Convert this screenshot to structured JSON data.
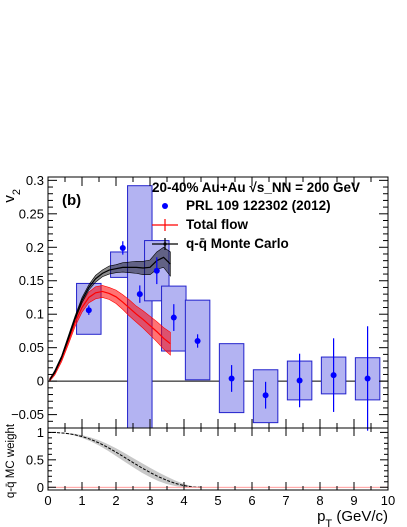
{
  "chart_data": [
    {
      "type": "scatter",
      "panel": "upper",
      "panel_label": "(b)",
      "title": "",
      "xlabel": "p_T (GeV/c)",
      "ylabel": "v_2",
      "xlim": [
        0,
        10
      ],
      "ylim": [
        -0.07,
        0.305
      ],
      "yticks": [
        -0.05,
        0,
        0.05,
        0.1,
        0.15,
        0.2,
        0.25,
        0.3
      ],
      "ytick_labels": [
        "−0.05",
        "0",
        "0.05",
        "0.1",
        "0.15",
        "0.2",
        "0.25",
        "0.3"
      ],
      "reference_line_y": 0,
      "legend_position": "top-right",
      "legend": {
        "header": "20-40% Au+Au  √s_NN = 200 GeV",
        "entries": [
          "PRL 109 122302 (2012)",
          "Total flow",
          "q-q̄ Monte Carlo"
        ]
      },
      "series": [
        {
          "name": "PRL 109 122302 (2012)",
          "color": "#0000ff",
          "marker": "circle",
          "x": [
            1.2,
            2.2,
            2.7,
            3.2,
            3.7,
            4.4,
            5.4,
            6.4,
            7.4,
            8.4,
            9.4
          ],
          "y": [
            0.106,
            0.199,
            0.13,
            0.165,
            0.095,
            0.06,
            0.004,
            -0.021,
            0.001,
            0.009,
            0.004
          ],
          "stat_err": [
            0.007,
            0.01,
            0.013,
            0.02,
            0.02,
            0.01,
            0.02,
            0.02,
            0.04,
            0.055,
            0.078
          ],
          "sys_low": [
            0.07,
            0.155,
            -0.07,
            0.12,
            0.045,
            0.002,
            -0.047,
            -0.062,
            -0.028,
            -0.019,
            -0.028
          ],
          "sys_high": [
            0.146,
            0.193,
            0.292,
            0.21,
            0.142,
            0.121,
            0.056,
            0.017,
            0.03,
            0.036,
            0.035
          ]
        },
        {
          "name": "Total flow",
          "color": "#ff0000",
          "type": "line_band",
          "x": [
            0.05,
            0.2,
            0.4,
            0.6,
            0.8,
            1.0,
            1.2,
            1.4,
            1.6,
            1.8,
            2.0,
            2.2,
            2.4,
            2.6,
            2.8,
            3.0,
            3.2,
            3.4,
            3.6
          ],
          "y": [
            0.002,
            0.012,
            0.033,
            0.06,
            0.088,
            0.11,
            0.125,
            0.132,
            0.134,
            0.131,
            0.126,
            0.118,
            0.109,
            0.1,
            0.092,
            0.083,
            0.074,
            0.064,
            0.056
          ],
          "err": [
            0.002,
            0.003,
            0.004,
            0.005,
            0.006,
            0.007,
            0.008,
            0.009,
            0.009,
            0.009,
            0.01,
            0.011,
            0.012,
            0.012,
            0.013,
            0.014,
            0.015,
            0.016,
            0.017
          ]
        },
        {
          "name": "q-q̄ Monte Carlo",
          "color": "#000000",
          "type": "line_band",
          "x": [
            0.05,
            0.2,
            0.4,
            0.6,
            0.8,
            1.0,
            1.2,
            1.4,
            1.6,
            1.8,
            2.0,
            2.2,
            2.4,
            2.6,
            2.8,
            3.0,
            3.2,
            3.4,
            3.6
          ],
          "y": [
            0.002,
            0.014,
            0.036,
            0.065,
            0.095,
            0.121,
            0.14,
            0.153,
            0.161,
            0.166,
            0.168,
            0.17,
            0.17,
            0.17,
            0.169,
            0.17,
            0.18,
            0.185,
            0.175
          ],
          "err": [
            0.001,
            0.002,
            0.002,
            0.003,
            0.003,
            0.004,
            0.004,
            0.005,
            0.005,
            0.006,
            0.006,
            0.007,
            0.008,
            0.009,
            0.01,
            0.011,
            0.013,
            0.015,
            0.018
          ]
        }
      ]
    },
    {
      "type": "line",
      "panel": "lower",
      "title": "",
      "xlabel": "p_T (GeV/c)",
      "ylabel": "q-q̄ MC weight",
      "xlim": [
        0,
        10
      ],
      "ylim": [
        -0.05,
        1.08
      ],
      "xticks": [
        0,
        1,
        2,
        3,
        4,
        5,
        6,
        7,
        8,
        9,
        10
      ],
      "yticks": [
        0,
        0.5,
        1
      ],
      "ytick_labels": [
        "0",
        "0.5",
        "1"
      ],
      "series": [
        {
          "name": "",
          "color": "#000000",
          "x": [
            0,
            0.25,
            0.5,
            0.75,
            1.0,
            1.25,
            1.5,
            1.75,
            2.0,
            2.25,
            2.5,
            2.75,
            3.0,
            3.25,
            3.5,
            3.75,
            4.0,
            4.25,
            4.5
          ],
          "y": [
            1.0,
            0.997,
            0.985,
            0.962,
            0.925,
            0.874,
            0.808,
            0.729,
            0.64,
            0.546,
            0.45,
            0.357,
            0.27,
            0.192,
            0.125,
            0.07,
            0.03,
            0.006,
            0.0
          ],
          "band_halfwidth": [
            0.0,
            0.003,
            0.008,
            0.015,
            0.025,
            0.036,
            0.048,
            0.06,
            0.07,
            0.078,
            0.084,
            0.087,
            0.086,
            0.08,
            0.068,
            0.05,
            0.03,
            0.012,
            0.0
          ]
        }
      ]
    }
  ],
  "colors": {
    "data_points": "#0000ff",
    "sys_box_fill": "#b3b3f2",
    "sys_box_stroke": "#2222cc",
    "total_flow": "#ff0000",
    "monte_carlo": "#000000",
    "weight_band": "#c8c8c8",
    "zero_line": "#000000",
    "zero_line_weight": "#ff7777"
  }
}
